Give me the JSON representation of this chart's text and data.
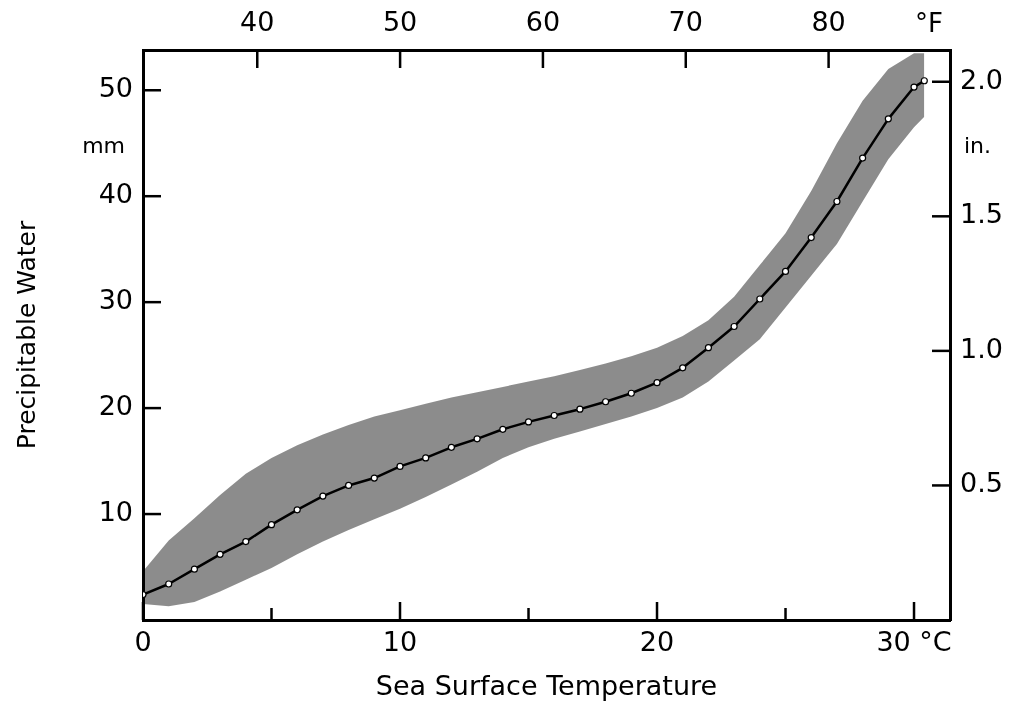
{
  "chart_data": {
    "type": "line",
    "xlabel": "Sea Surface Temperature",
    "ylabel": "Precipitable Water",
    "y2label": "in.",
    "x2label": "°F",
    "annotations": [
      "mm"
    ],
    "xlim": [
      0,
      31.4
    ],
    "xticks": [
      0,
      {
        "value": 5,
        "label": null
      },
      10,
      {
        "value": 15,
        "label": null
      },
      20,
      {
        "value": 25,
        "label": null
      },
      {
        "value": 30,
        "label": "30 °C"
      }
    ],
    "ylim": [
      0,
      53.8
    ],
    "yticks": [
      10,
      20,
      30,
      40,
      50
    ],
    "y2lim": [
      0,
      2.118
    ],
    "y2ticks": [
      0.5,
      {
        "value": 1,
        "label": "1.0"
      },
      1.5,
      {
        "value": 2,
        "label": "2.0"
      }
    ],
    "x2lim": [
      32,
      88.5
    ],
    "x2ticks": [
      40,
      50,
      60,
      70,
      80
    ],
    "grid": false,
    "legend": false,
    "marker": "circle",
    "line_style": "solid",
    "series": [
      {
        "color": "#000000",
        "x": [
          0,
          1,
          2,
          3,
          4,
          5,
          6,
          7,
          8,
          9,
          10,
          11,
          12,
          13,
          14,
          15,
          16,
          17,
          18,
          19,
          20,
          21,
          22,
          23,
          24,
          25,
          26,
          27,
          28,
          29,
          30,
          30.4
        ],
        "values": [
          2.4,
          3.4,
          4.8,
          6.2,
          7.4,
          9.0,
          10.4,
          11.7,
          12.7,
          13.4,
          14.5,
          15.3,
          16.3,
          17.1,
          18.0,
          18.7,
          19.3,
          19.9,
          20.6,
          21.4,
          22.4,
          23.8,
          25.7,
          27.7,
          30.3,
          32.9,
          36.1,
          39.5,
          43.6,
          47.3,
          50.3,
          50.9
        ],
        "upper": [
          4.6,
          7.5,
          9.6,
          11.8,
          13.8,
          15.3,
          16.5,
          17.5,
          18.4,
          19.2,
          19.8,
          20.4,
          21,
          21.5,
          22,
          22.5,
          23,
          23.6,
          24.2,
          24.9,
          25.7,
          26.8,
          28.3,
          30.5,
          33.5,
          36.5,
          40.5,
          45,
          49,
          52,
          53.5,
          53.5
        ],
        "lower": [
          1.5,
          1.3,
          1.7,
          2.7,
          3.8,
          4.9,
          6.2,
          7.4,
          8.5,
          9.5,
          10.5,
          11.6,
          12.8,
          14,
          15.3,
          16.3,
          17.1,
          17.8,
          18.5,
          19.2,
          20,
          21,
          22.5,
          24.5,
          26.5,
          29.5,
          32.5,
          35.5,
          39.5,
          43.5,
          46.5,
          47.5
        ]
      }
    ]
  }
}
